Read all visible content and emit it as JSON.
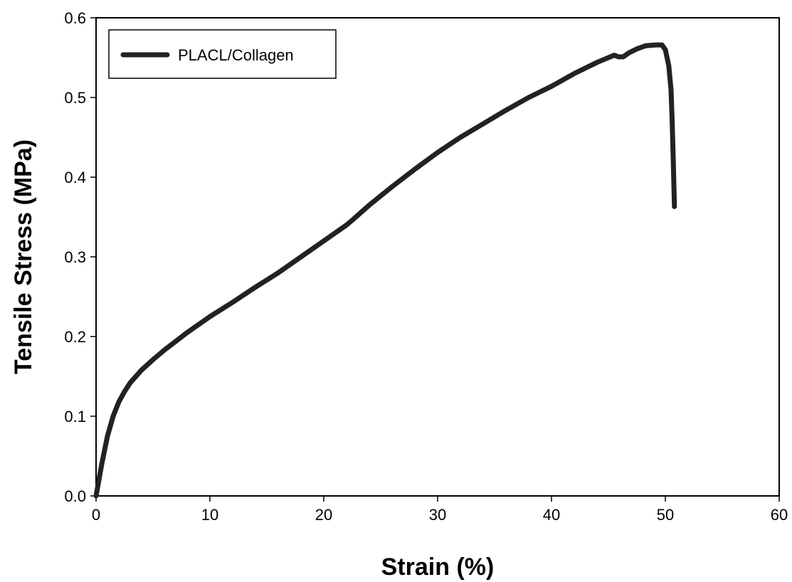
{
  "chart_data": {
    "type": "line",
    "title": "",
    "xlabel": "Strain (%)",
    "ylabel": "Tensile Stress (MPa)",
    "xlim": [
      0,
      60
    ],
    "ylim": [
      0,
      0.6
    ],
    "xticks": [
      0,
      10,
      20,
      30,
      40,
      50,
      60
    ],
    "yticks": [
      "0.0",
      "0.1",
      "0.2",
      "0.3",
      "0.4",
      "0.5",
      "0.6"
    ],
    "grid": false,
    "legend_position": "top-left",
    "series": [
      {
        "name": "PLACL/Collagen",
        "color": "#222222",
        "x": [
          0,
          0.5,
          1,
          1.5,
          2,
          2.5,
          3,
          4,
          5,
          6,
          8,
          10,
          12,
          14,
          16,
          18,
          20,
          22,
          22.5,
          24,
          26,
          28,
          30,
          32,
          34,
          36,
          38,
          40,
          42,
          44,
          45.5,
          45.9,
          46.3,
          46.8,
          47.5,
          48.3,
          49.2,
          49.7,
          50.0,
          50.3,
          50.5,
          50.6,
          50.7,
          50.75,
          50.8
        ],
        "y": [
          0,
          0.04,
          0.075,
          0.1,
          0.118,
          0.131,
          0.142,
          0.158,
          0.171,
          0.183,
          0.205,
          0.225,
          0.243,
          0.262,
          0.28,
          0.3,
          0.32,
          0.34,
          0.346,
          0.365,
          0.388,
          0.41,
          0.431,
          0.45,
          0.467,
          0.484,
          0.5,
          0.514,
          0.53,
          0.544,
          0.553,
          0.551,
          0.551,
          0.556,
          0.561,
          0.565,
          0.566,
          0.566,
          0.56,
          0.54,
          0.51,
          0.47,
          0.42,
          0.39,
          0.363
        ]
      }
    ]
  }
}
